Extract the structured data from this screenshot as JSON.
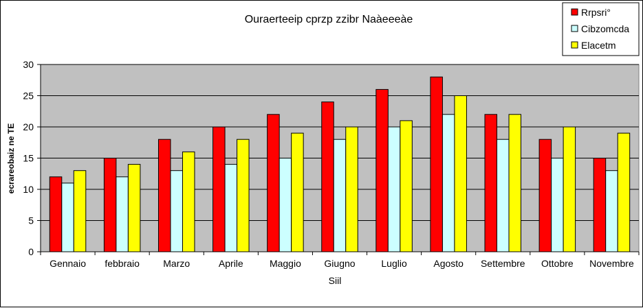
{
  "chart_data": {
    "type": "bar",
    "title": "Ouraerteeip cprzp zzibr Naàeeeàe",
    "xlabel": "Siil",
    "ylabel": "ecrareobaiz ne TE",
    "ylim": [
      0,
      30
    ],
    "yticks": [
      0,
      5,
      10,
      15,
      20,
      25,
      30
    ],
    "grid": true,
    "legend_position": "top-right",
    "categories": [
      "Gennaio",
      "febbraio",
      "Marzo",
      "Aprile",
      "Maggio",
      "Giugno",
      "Luglio",
      "Agosto",
      "Settembre",
      "Ottobre",
      "Novembre"
    ],
    "series": [
      {
        "name": "Rrpsri°",
        "color": "#ff0000",
        "values": [
          12,
          15,
          18,
          20,
          22,
          24,
          26,
          28,
          22,
          18,
          15
        ]
      },
      {
        "name": "Cibzomcda",
        "color": "#ccffff",
        "values": [
          11,
          12,
          13,
          14,
          15,
          18,
          20,
          22,
          18,
          15,
          13
        ]
      },
      {
        "name": "Elacetm",
        "color": "#ffff00",
        "values": [
          13,
          14,
          16,
          18,
          19,
          20,
          21,
          25,
          22,
          20,
          19
        ]
      }
    ],
    "plot_background": "#c0c0c0"
  }
}
